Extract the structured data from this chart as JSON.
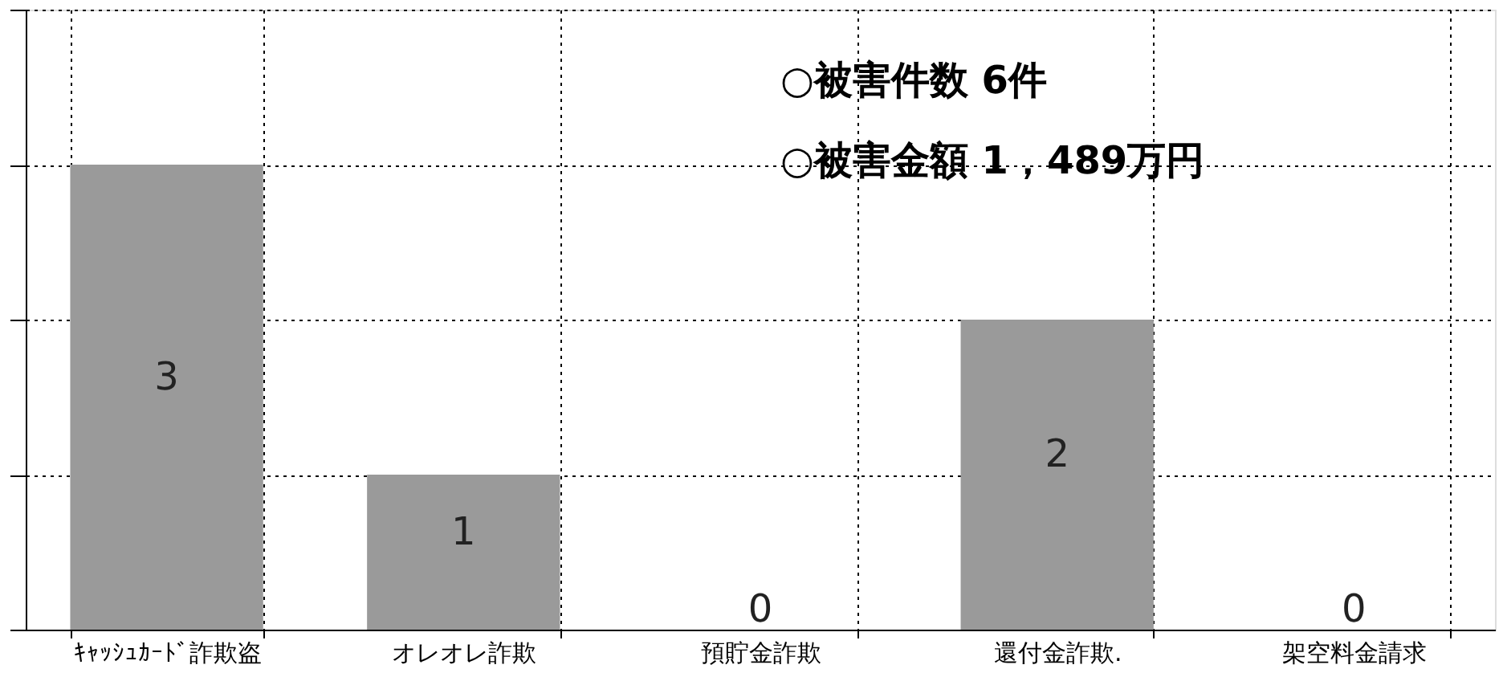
{
  "chart_data": {
    "type": "bar",
    "categories": [
      "ｷｬｯｼｭｶｰﾄﾞ詐欺盗",
      "オレオレ詐欺",
      "預貯金詐欺",
      "還付金詐欺.",
      "架空料金請求"
    ],
    "values": [
      3,
      1,
      0,
      2,
      0
    ],
    "color": "#9a9a9a",
    "ylim": [
      0,
      4
    ],
    "yticks": [
      {
        "value": 0,
        "label": null
      },
      {
        "value": 1,
        "label": null
      },
      {
        "value": 2,
        "label": null
      },
      {
        "value": 3,
        "label": null
      },
      {
        "value": 4,
        "label": null
      }
    ],
    "tick_labels": "x",
    "grid": true,
    "data_labels": true,
    "annotations": [
      "○被害件数  6件",
      "○被害金額  1，489万円"
    ]
  }
}
